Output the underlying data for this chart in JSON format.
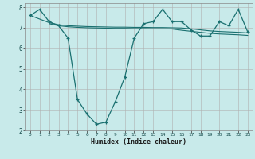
{
  "title": "",
  "xlabel": "Humidex (Indice chaleur)",
  "ylabel": "",
  "bg_color": "#c8eaea",
  "grid_color": "#b0b0b0",
  "line_color": "#1a7070",
  "x_main": [
    0,
    1,
    2,
    3,
    4,
    5,
    6,
    7,
    8,
    9,
    10,
    11,
    12,
    13,
    14,
    15,
    16,
    17,
    18,
    19,
    20,
    21,
    22,
    23
  ],
  "y_main": [
    7.6,
    7.9,
    7.3,
    7.1,
    6.5,
    3.5,
    2.8,
    2.3,
    2.4,
    3.4,
    4.6,
    6.5,
    7.2,
    7.3,
    7.9,
    7.3,
    7.3,
    6.9,
    6.6,
    6.6,
    7.3,
    7.1,
    7.9,
    6.8
  ],
  "x_line1": [
    0,
    2,
    3,
    4,
    5,
    6,
    7,
    8,
    9,
    10,
    11,
    12,
    13,
    14,
    15,
    16,
    17,
    18,
    19,
    20,
    21,
    22,
    23
  ],
  "y_line1": [
    7.6,
    7.25,
    7.15,
    7.1,
    7.08,
    7.06,
    7.05,
    7.04,
    7.03,
    7.03,
    7.02,
    7.02,
    7.01,
    7.01,
    7.0,
    6.99,
    6.95,
    6.9,
    6.85,
    6.82,
    6.8,
    6.78,
    6.75
  ],
  "x_line2": [
    2,
    3,
    4,
    5,
    6,
    7,
    8,
    9,
    10,
    11,
    12,
    13,
    14,
    15,
    16,
    17,
    18,
    19,
    20,
    21,
    22,
    23
  ],
  "y_line2": [
    7.2,
    7.1,
    7.05,
    7.02,
    7.0,
    6.99,
    6.98,
    6.97,
    6.97,
    6.96,
    6.96,
    6.95,
    6.95,
    6.94,
    6.88,
    6.83,
    6.78,
    6.73,
    6.7,
    6.68,
    6.66,
    6.63
  ],
  "ylim": [
    2,
    8.2
  ],
  "xlim": [
    -0.5,
    23.5
  ],
  "yticks": [
    2,
    3,
    4,
    5,
    6,
    7,
    8
  ],
  "xticks": [
    0,
    1,
    2,
    3,
    4,
    5,
    6,
    7,
    8,
    9,
    10,
    11,
    12,
    13,
    14,
    15,
    16,
    17,
    18,
    19,
    20,
    21,
    22,
    23
  ],
  "figsize": [
    3.2,
    2.0
  ],
  "dpi": 100
}
